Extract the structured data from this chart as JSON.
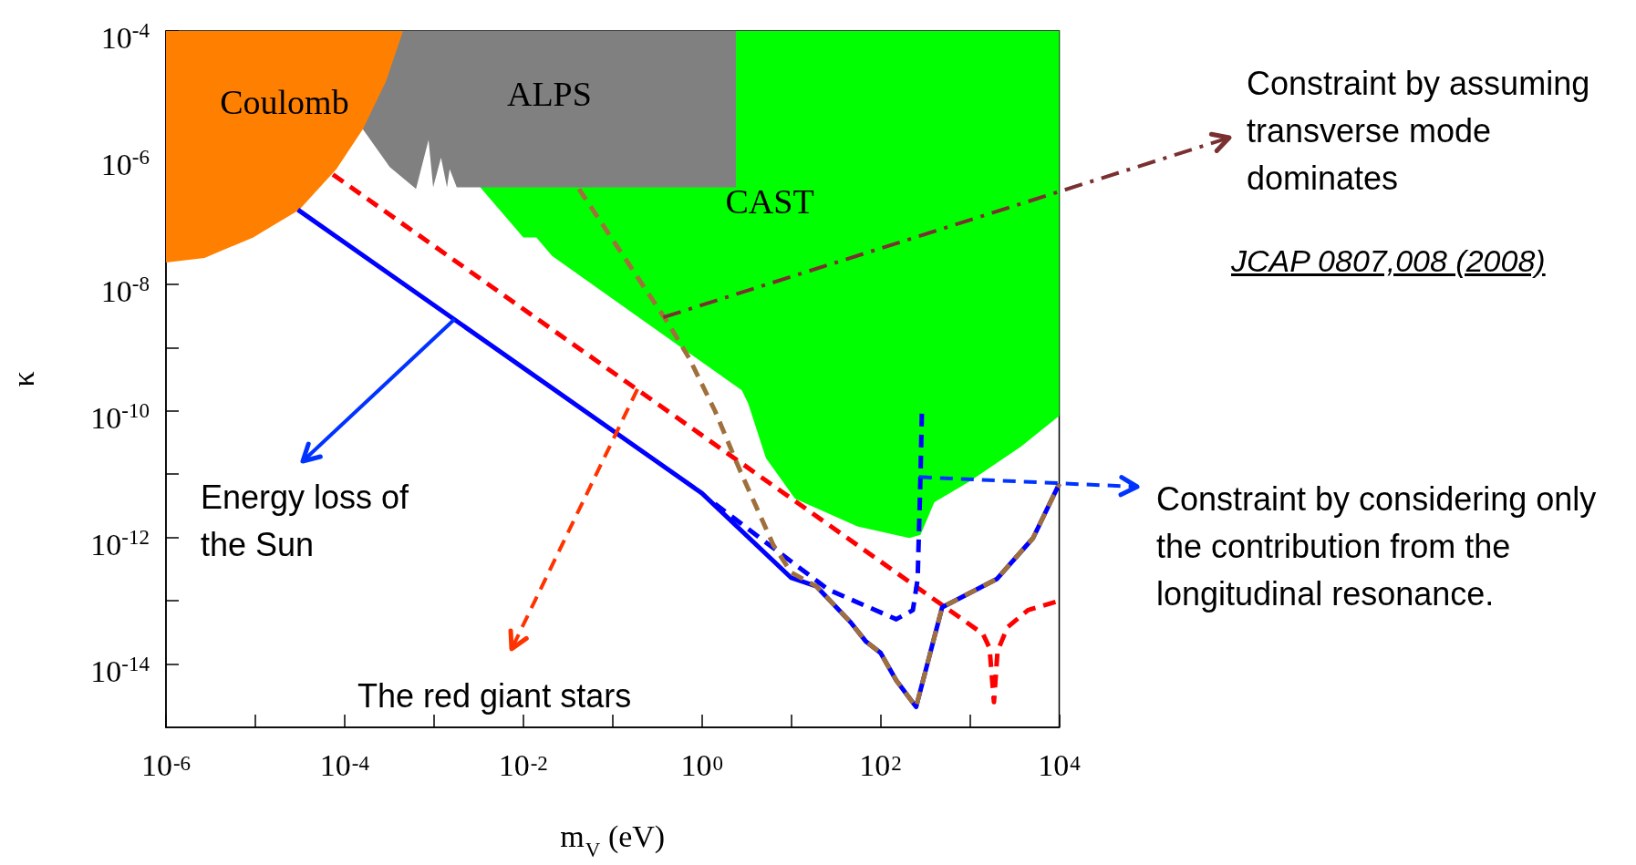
{
  "chart_data": {
    "type": "line",
    "xlabel": "m$_{V}$ (eV)",
    "ylabel": "κ",
    "log": "xy",
    "grid": false,
    "legend": false,
    "xlim": [
      1e-06,
      10000
    ],
    "ylim": [
      1e-15,
      0.0001
    ],
    "xticks": [
      {
        "value": 1e-06,
        "label": "10$^{-6}$"
      },
      {
        "value": 1e-05,
        "label": null
      },
      {
        "value": 0.0001,
        "label": "10$^{-4}$"
      },
      {
        "value": 0.001,
        "label": null
      },
      {
        "value": 0.01,
        "label": "10$^{-2}$"
      },
      {
        "value": 0.1,
        "label": null
      },
      {
        "value": 1,
        "label": "10$^{0}$"
      },
      {
        "value": 10,
        "label": null
      },
      {
        "value": 100,
        "label": "10$^{2}$"
      },
      {
        "value": 1000,
        "label": null
      },
      {
        "value": 10000,
        "label": "10$^{4}$"
      }
    ],
    "yticks": [
      {
        "value": 0.0001,
        "label": "10$^{-4}$"
      },
      {
        "value": 1e-05,
        "label": null
      },
      {
        "value": 1e-06,
        "label": "10$^{-6}$"
      },
      {
        "value": 1e-07,
        "label": null
      },
      {
        "value": 1e-08,
        "label": "10$^{-8}$"
      },
      {
        "value": 1e-09,
        "label": null
      },
      {
        "value": 1e-10,
        "label": "10$^{-10}$"
      },
      {
        "value": 1e-11,
        "label": null
      },
      {
        "value": 1e-12,
        "label": "10$^{-12}$"
      },
      {
        "value": 1e-13,
        "label": null
      },
      {
        "value": 1e-14,
        "label": "10$^{-14}$"
      }
    ],
    "series": [
      {
        "type": "area",
        "name": "CAST",
        "color": "#00ff00",
        "x": [
          0.0033,
          0.01,
          0.014,
          0.021,
          2.8,
          3.3,
          5.2,
          11,
          55,
          210,
          280,
          400,
          980,
          3700,
          10000,
          10000,
          0.0033
        ],
        "values": [
          3.4e-07,
          5.5e-08,
          5.5e-08,
          2.8e-08,
          2.1e-10,
          1.3e-10,
          1.8e-11,
          4.1e-12,
          1.5e-12,
          9.8e-13,
          1.1e-12,
          3.6e-12,
          7.6e-12,
          2.7e-11,
          8.3e-11,
          0.0001,
          0.0001
        ]
      },
      {
        "type": "area",
        "name": "ALPS",
        "color": "#808080",
        "x": [
          0.00016,
          0.00032,
          0.00063,
          0.00087,
          0.00098,
          0.0012,
          0.0014,
          0.0015,
          0.0018,
          2.4,
          2.4,
          0.00016
        ],
        "values": [
          2.8e-06,
          7.1e-07,
          3.2e-07,
          1.9e-06,
          3.4e-07,
          1e-06,
          3.4e-07,
          6.6e-07,
          3.4e-07,
          3.4e-07,
          0.0001,
          0.0001
        ]
      },
      {
        "type": "area",
        "name": "Coulomb",
        "color": "#ff8000",
        "x": [
          1e-06,
          2.7e-06,
          9.5e-06,
          3.1e-05,
          8.1e-05,
          0.00016,
          0.00029,
          0.00045,
          1e-06
        ],
        "values": [
          2.2e-08,
          2.6e-08,
          5.5e-08,
          1.5e-07,
          6.6e-07,
          2.8e-06,
          1.6e-05,
          0.0001,
          0.0001
        ]
      },
      {
        "color": "#ff0000",
        "line_style": "dashed",
        "x": [
          7.4e-05,
          1400,
          1660,
          1860,
          2040,
          2630,
          4470,
          10000
        ],
        "values": [
          5.4e-07,
          3e-14,
          1.8e-14,
          2.5e-15,
          1.6e-14,
          3.8e-14,
          7.1e-14,
          1e-13
        ]
      },
      {
        "color": "#0000ff",
        "line_style": "solid",
        "x": [
          3e-05,
          1,
          10,
          19,
          46,
          68,
          100,
          150,
          250,
          490,
          2000,
          5100,
          10000
        ],
        "values": [
          1.5e-07,
          5e-12,
          2.3e-13,
          1.7e-13,
          4.6e-14,
          2.3e-14,
          1.5e-14,
          5.5e-15,
          2.1e-15,
          7.9e-14,
          2.2e-13,
          9.8e-13,
          7e-12
        ]
      },
      {
        "color": "#0000ff",
        "line_style": "dashed",
        "x": [
          1.4,
          4.4,
          26,
          150,
          230,
          260,
          280,
          290
        ],
        "values": [
          3.4e-12,
          1e-12,
          1.5e-13,
          5.1e-14,
          7.1e-14,
          2.2e-13,
          9.1e-12,
          9.3e-11
        ]
      },
      {
        "color": "#a0703c",
        "line_style": "dashed",
        "x": [
          0.042,
          0.42,
          0.72,
          1.4,
          2.7,
          6.3,
          10,
          19,
          46,
          68,
          100,
          150,
          250,
          490,
          2000,
          5100,
          10000
        ],
        "values": [
          3.2e-07,
          2.4e-09,
          6.8e-10,
          1e-10,
          1.1e-11,
          7.6e-13,
          2.8e-13,
          1.7e-13,
          4.6e-14,
          2.3e-14,
          1.5e-14,
          5.5e-15,
          2.1e-15,
          7.9e-14,
          2.2e-13,
          9.8e-13,
          7e-12
        ]
      }
    ],
    "annotations": [
      {
        "text": "Energy loss of the Sun",
        "x": 0.0017,
        "y": 2.8e-09
      },
      {
        "text": "The red giant stars",
        "x": 0.19,
        "y": 2.2e-10
      },
      {
        "text": "Constraint by assuming transverse mode dominates",
        "x": 0.37,
        "y": 3e-09
      },
      "JCAP 0807,008 (2008)",
      {
        "text": "Constraint by considering only the contribution from the longitudinal resonance.",
        "x": 270,
        "y": 9e-12
      }
    ]
  }
}
